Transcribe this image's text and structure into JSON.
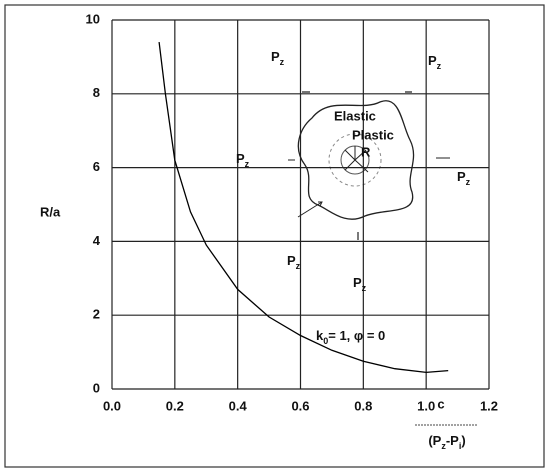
{
  "chart_data": {
    "type": "line",
    "y_label": "R/a",
    "x_label": {
      "top": "c",
      "bottom": [
        "(P",
        "z",
        "-P",
        "i",
        ")"
      ]
    },
    "x": [
      0.15,
      0.17,
      0.2,
      0.25,
      0.3,
      0.4,
      0.5,
      0.6,
      0.7,
      0.8,
      0.9,
      1.0,
      1.07
    ],
    "values": [
      9.4,
      8.0,
      6.2,
      4.8,
      3.9,
      2.7,
      1.95,
      1.45,
      1.05,
      0.75,
      0.55,
      0.45,
      0.5
    ],
    "color": "#000000",
    "xlim": [
      0,
      1.2
    ],
    "ylim": [
      0,
      10
    ],
    "xticks": [
      {
        "value": 0,
        "label": "0.0"
      },
      0.2,
      0.4,
      0.6,
      0.8,
      {
        "value": 1,
        "label": "1.0"
      },
      1.2
    ],
    "yticks": [
      0,
      2,
      4,
      6,
      8,
      10
    ],
    "grid": true,
    "annotations": [
      [
        "P",
        "z"
      ],
      [
        "P",
        "z"
      ],
      [
        "P",
        "z"
      ],
      [
        "P",
        "z"
      ],
      [
        "P",
        "z"
      ],
      [
        "P",
        "z"
      ],
      [
        "k",
        "0",
        "= 1, φ = 0"
      ]
    ],
    "inset_labels": [
      "Elastic",
      "Plastic",
      "R"
    ]
  }
}
